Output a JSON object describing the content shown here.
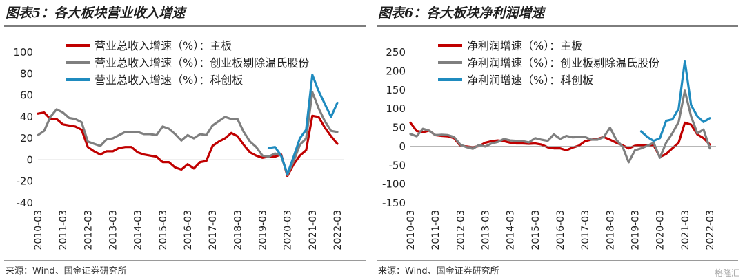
{
  "watermark": "格隆汇",
  "chart_data": [
    {
      "type": "line",
      "title": "图表5：各大板块营业收入增速",
      "source": "来源：Wind、国金证券研究所",
      "ylim": [
        -40,
        100
      ],
      "yticks": [
        -40,
        -20,
        0,
        20,
        40,
        60,
        80,
        100
      ],
      "xlim": [
        "2010-03",
        "2022-06"
      ],
      "xticks": [
        "2010-03",
        "2011-03",
        "2012-03",
        "2013-03",
        "2014-03",
        "2015-03",
        "2016-03",
        "2017-03",
        "2018-03",
        "2019-03",
        "2020-03",
        "2021-03",
        "2022-03"
      ],
      "legend_position": "top-left",
      "series": [
        {
          "name": "营业总收入增速（%）：主板",
          "color": "#c00000",
          "x": [
            "2010-03",
            "2010-06",
            "2010-09",
            "2010-12",
            "2011-03",
            "2011-06",
            "2011-09",
            "2011-12",
            "2012-03",
            "2012-06",
            "2012-09",
            "2012-12",
            "2013-03",
            "2013-06",
            "2013-09",
            "2013-12",
            "2014-03",
            "2014-06",
            "2014-09",
            "2014-12",
            "2015-03",
            "2015-06",
            "2015-09",
            "2015-12",
            "2016-03",
            "2016-06",
            "2016-09",
            "2016-12",
            "2017-03",
            "2017-06",
            "2017-09",
            "2017-12",
            "2018-03",
            "2018-06",
            "2018-09",
            "2018-12",
            "2019-03",
            "2019-06",
            "2019-09",
            "2019-12",
            "2020-03",
            "2020-06",
            "2020-09",
            "2020-12",
            "2021-03",
            "2021-06",
            "2021-09",
            "2021-12",
            "2022-03"
          ],
          "values": [
            43,
            44,
            38,
            38,
            33,
            32,
            31,
            28,
            12,
            8,
            5,
            8,
            8,
            11,
            12,
            12,
            7,
            5,
            4,
            3,
            -2,
            -2,
            -7,
            -9,
            -4,
            -8,
            -2,
            -1,
            13,
            17,
            20,
            25,
            22,
            14,
            7,
            4,
            2,
            3,
            3,
            5,
            -15,
            -4,
            4,
            9,
            41,
            40,
            30,
            22,
            15
          ]
        },
        {
          "name": "营业总收入增速（%）：创业板剔除温氏股份",
          "color": "#7f7f7f",
          "x": [
            "2010-03",
            "2010-06",
            "2010-09",
            "2010-12",
            "2011-03",
            "2011-06",
            "2011-09",
            "2011-12",
            "2012-03",
            "2012-06",
            "2012-09",
            "2012-12",
            "2013-03",
            "2013-06",
            "2013-09",
            "2013-12",
            "2014-03",
            "2014-06",
            "2014-09",
            "2014-12",
            "2015-03",
            "2015-06",
            "2015-09",
            "2015-12",
            "2016-03",
            "2016-06",
            "2016-09",
            "2016-12",
            "2017-03",
            "2017-06",
            "2017-09",
            "2017-12",
            "2018-03",
            "2018-06",
            "2018-09",
            "2018-12",
            "2019-03",
            "2019-06",
            "2019-09",
            "2019-12",
            "2020-03",
            "2020-06",
            "2020-09",
            "2020-12",
            "2021-03",
            "2021-06",
            "2021-09",
            "2021-12",
            "2022-03"
          ],
          "values": [
            23,
            27,
            40,
            47,
            44,
            39,
            38,
            35,
            17,
            15,
            13,
            19,
            20,
            23,
            26,
            26,
            26,
            24,
            24,
            23,
            31,
            29,
            24,
            18,
            23,
            20,
            24,
            23,
            32,
            36,
            40,
            38,
            38,
            26,
            17,
            12,
            4,
            3,
            6,
            4,
            -14,
            -1,
            14,
            20,
            63,
            48,
            36,
            27,
            26
          ]
        },
        {
          "name": "营业总收入增速（%）：科创板",
          "color": "#1f8bbf",
          "x": [
            "2019-06",
            "2019-09",
            "2019-12",
            "2020-03",
            "2020-06",
            "2020-09",
            "2020-12",
            "2021-03",
            "2021-06",
            "2021-09",
            "2021-12",
            "2022-03"
          ],
          "values": [
            11,
            12,
            4,
            -13,
            3,
            20,
            28,
            79,
            64,
            52,
            40,
            53
          ]
        }
      ]
    },
    {
      "type": "line",
      "title": "图表6：各大板块净利润增速",
      "source": "来源：Wind、国金证券研究所",
      "ylim": [
        -150,
        250
      ],
      "yticks": [
        -150,
        -100,
        -50,
        0,
        50,
        100,
        150,
        200,
        250
      ],
      "xlim": [
        "2010-03",
        "2022-06"
      ],
      "xticks": [
        "2010-03",
        "2011-03",
        "2012-03",
        "2013-03",
        "2014-03",
        "2015-03",
        "2016-03",
        "2017-03",
        "2018-03",
        "2019-03",
        "2020-03",
        "2021-03",
        "2022-03"
      ],
      "legend_position": "top-left",
      "series": [
        {
          "name": "净利润增速（%）：主板",
          "color": "#c00000",
          "x": [
            "2010-03",
            "2010-06",
            "2010-09",
            "2010-12",
            "2011-03",
            "2011-06",
            "2011-09",
            "2011-12",
            "2012-03",
            "2012-06",
            "2012-09",
            "2012-12",
            "2013-03",
            "2013-06",
            "2013-09",
            "2013-12",
            "2014-03",
            "2014-06",
            "2014-09",
            "2014-12",
            "2015-03",
            "2015-06",
            "2015-09",
            "2015-12",
            "2016-03",
            "2016-06",
            "2016-09",
            "2016-12",
            "2017-03",
            "2017-06",
            "2017-09",
            "2017-12",
            "2018-03",
            "2018-06",
            "2018-09",
            "2018-12",
            "2019-03",
            "2019-06",
            "2019-09",
            "2019-12",
            "2020-03",
            "2020-06",
            "2020-09",
            "2020-12",
            "2021-03",
            "2021-06",
            "2021-09",
            "2021-12",
            "2022-03"
          ],
          "values": [
            63,
            41,
            38,
            42,
            30,
            28,
            27,
            22,
            2,
            0,
            -2,
            1,
            10,
            14,
            16,
            14,
            10,
            8,
            8,
            7,
            8,
            5,
            -2,
            -5,
            -5,
            -10,
            -3,
            2,
            14,
            18,
            20,
            25,
            18,
            10,
            3,
            -5,
            2,
            3,
            4,
            3,
            -28,
            -20,
            -5,
            10,
            63,
            58,
            32,
            22,
            5
          ]
        },
        {
          "name": "净利润增速（%）：创业板剔除温氏股份",
          "color": "#7f7f7f",
          "x": [
            "2010-03",
            "2010-06",
            "2010-09",
            "2010-12",
            "2011-03",
            "2011-06",
            "2011-09",
            "2011-12",
            "2012-03",
            "2012-06",
            "2012-09",
            "2012-12",
            "2013-03",
            "2013-06",
            "2013-09",
            "2013-12",
            "2014-03",
            "2014-06",
            "2014-09",
            "2014-12",
            "2015-03",
            "2015-06",
            "2015-09",
            "2015-12",
            "2016-03",
            "2016-06",
            "2016-09",
            "2016-12",
            "2017-03",
            "2017-06",
            "2017-09",
            "2017-12",
            "2018-03",
            "2018-06",
            "2018-09",
            "2018-12",
            "2019-03",
            "2019-06",
            "2019-09",
            "2019-12",
            "2020-03",
            "2020-06",
            "2020-09",
            "2020-12",
            "2021-03",
            "2021-06",
            "2021-09",
            "2021-12",
            "2022-03"
          ],
          "values": [
            33,
            27,
            47,
            42,
            30,
            31,
            30,
            25,
            5,
            -2,
            -6,
            4,
            0,
            8,
            12,
            20,
            16,
            15,
            14,
            11,
            22,
            18,
            15,
            32,
            20,
            28,
            24,
            25,
            25,
            18,
            18,
            25,
            50,
            18,
            0,
            -42,
            -10,
            -5,
            2,
            10,
            -30,
            10,
            35,
            65,
            148,
            80,
            35,
            45,
            -5
          ]
        },
        {
          "name": "净利润增速（%）：科创板",
          "color": "#1f8bbf",
          "x": [
            "2019-06",
            "2019-09",
            "2019-12",
            "2020-03",
            "2020-06",
            "2020-09",
            "2020-12",
            "2021-03",
            "2021-06",
            "2021-09",
            "2021-12",
            "2022-03"
          ],
          "values": [
            40,
            25,
            15,
            22,
            68,
            72,
            100,
            227,
            110,
            80,
            65,
            75
          ]
        }
      ]
    }
  ]
}
